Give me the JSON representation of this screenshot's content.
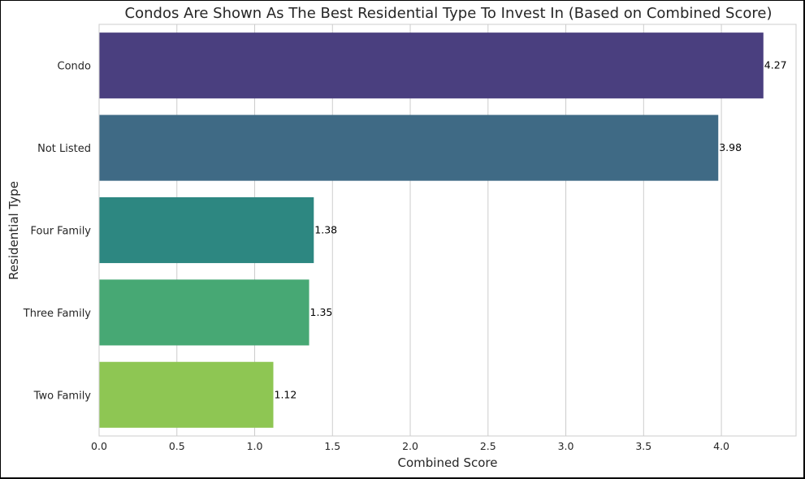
{
  "chart_data": {
    "type": "bar",
    "orientation": "horizontal",
    "title": "Condos Are Shown As The Best Residential Type To Invest In (Based on Combined Score)",
    "xlabel": "Combined Score",
    "ylabel": "Residential Type",
    "xlim": [
      0,
      4.48
    ],
    "xticks": [
      "0.0",
      "0.5",
      "1.0",
      "1.5",
      "2.0",
      "2.5",
      "3.0",
      "3.5",
      "4.0"
    ],
    "grid": "vertical",
    "categories": [
      "Condo",
      "Not Listed",
      "Four Family",
      "Three Family",
      "Two Family"
    ],
    "values": [
      4.27,
      3.98,
      1.38,
      1.35,
      1.12
    ],
    "value_labels": [
      "4.27",
      "3.98",
      "1.38",
      "1.35",
      "1.12"
    ],
    "colors": [
      "#4a3f7f",
      "#3f6a85",
      "#2d8781",
      "#47a874",
      "#8ec653"
    ]
  }
}
